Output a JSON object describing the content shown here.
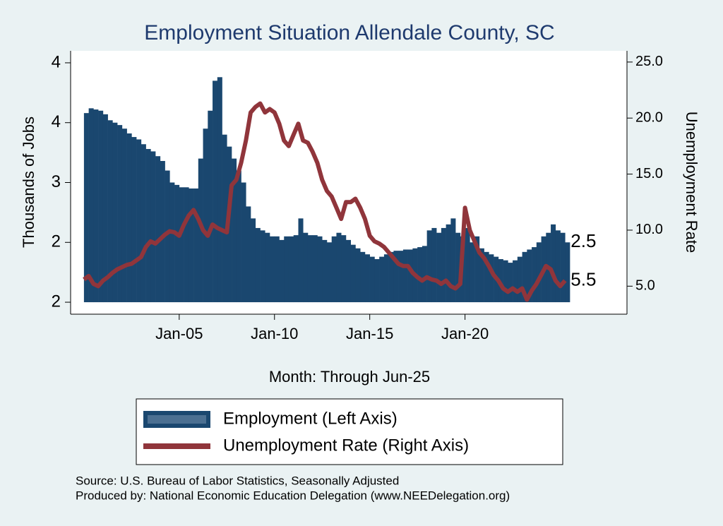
{
  "chart_data": {
    "type": "bar_line",
    "title": "Employment Situation Allendale  County, SC",
    "x_label": "Month: Through Jun-25",
    "y_label": "Thousands of Jobs",
    "y2_label": "Unemployment Rate",
    "x": [
      2000,
      2000.25,
      2000.5,
      2000.75,
      2001,
      2001.25,
      2001.5,
      2001.75,
      2002,
      2002.25,
      2002.5,
      2002.75,
      2003,
      2003.25,
      2003.5,
      2003.75,
      2004,
      2004.25,
      2004.5,
      2004.75,
      2005,
      2005.25,
      2005.5,
      2005.75,
      2006,
      2006.25,
      2006.5,
      2006.75,
      2007,
      2007.25,
      2007.5,
      2007.75,
      2008,
      2008.25,
      2008.5,
      2008.75,
      2009,
      2009.25,
      2009.5,
      2009.75,
      2010,
      2010.25,
      2010.5,
      2010.75,
      2011,
      2011.25,
      2011.5,
      2011.75,
      2012,
      2012.25,
      2012.5,
      2012.75,
      2013,
      2013.25,
      2013.5,
      2013.75,
      2014,
      2014.25,
      2014.5,
      2014.75,
      2015,
      2015.25,
      2015.5,
      2015.75,
      2016,
      2016.25,
      2016.5,
      2016.75,
      2017,
      2017.25,
      2017.5,
      2017.75,
      2018,
      2018.25,
      2018.5,
      2018.75,
      2019,
      2019.25,
      2019.5,
      2019.75,
      2020,
      2020.25,
      2020.5,
      2020.75,
      2021,
      2021.25,
      2021.5,
      2021.75,
      2022,
      2022.25,
      2022.5,
      2022.75,
      2023,
      2023.25,
      2023.5,
      2023.75,
      2024,
      2024.25,
      2024.5,
      2024.75,
      2025,
      2025.25
    ],
    "xlim": [
      1999.3,
      2028.5
    ],
    "xticks": [
      {
        "value": 2005,
        "label": "Jan-05"
      },
      {
        "value": 2010,
        "label": "Jan-10"
      },
      {
        "value": 2015,
        "label": "Jan-15"
      },
      {
        "value": 2020,
        "label": "Jan-20"
      }
    ],
    "ylim": [
      1.9,
      4.1
    ],
    "yticks": [
      {
        "value": 2.0,
        "label": "2"
      },
      {
        "value": 2.5,
        "label": "2"
      },
      {
        "value": 3.0,
        "label": "3"
      },
      {
        "value": 3.5,
        "label": "4"
      },
      {
        "value": 4.0,
        "label": "4"
      }
    ],
    "y2lim": [
      2.5,
      26
    ],
    "y2ticks": [
      {
        "value": 5,
        "label": "5.0"
      },
      {
        "value": 10,
        "label": "10.0"
      },
      {
        "value": 15,
        "label": "15.0"
      },
      {
        "value": 20,
        "label": "20.0"
      },
      {
        "value": 25,
        "label": "25.0"
      }
    ],
    "series": [
      {
        "name": "Employment (Left Axis)",
        "type": "bar",
        "color": "#1a476f",
        "end_label": "2.5",
        "values": [
          3.58,
          3.62,
          3.61,
          3.6,
          3.57,
          3.52,
          3.5,
          3.48,
          3.45,
          3.41,
          3.38,
          3.36,
          3.32,
          3.28,
          3.26,
          3.22,
          3.18,
          3.1,
          3.0,
          2.98,
          2.96,
          2.96,
          2.95,
          2.95,
          3.2,
          3.45,
          3.6,
          3.85,
          3.88,
          3.4,
          3.3,
          3.2,
          3.1,
          3.0,
          2.8,
          2.7,
          2.62,
          2.6,
          2.58,
          2.55,
          2.55,
          2.52,
          2.55,
          2.55,
          2.56,
          2.7,
          2.58,
          2.56,
          2.56,
          2.55,
          2.52,
          2.5,
          2.55,
          2.58,
          2.56,
          2.52,
          2.48,
          2.45,
          2.42,
          2.4,
          2.38,
          2.36,
          2.38,
          2.4,
          2.42,
          2.43,
          2.43,
          2.44,
          2.44,
          2.45,
          2.46,
          2.47,
          2.6,
          2.62,
          2.58,
          2.62,
          2.65,
          2.7,
          2.58,
          2.55,
          2.62,
          2.5,
          2.55,
          2.45,
          2.42,
          2.4,
          2.38,
          2.36,
          2.35,
          2.33,
          2.35,
          2.38,
          2.42,
          2.44,
          2.46,
          2.5,
          2.55,
          2.58,
          2.65,
          2.6,
          2.58,
          2.5
        ]
      },
      {
        "name": "Unemployment Rate (Right Axis)",
        "type": "line",
        "axis": "y2",
        "color": "#90353b",
        "end_label": "5.5",
        "values": [
          5.6,
          5.9,
          5.2,
          5.0,
          5.5,
          5.8,
          6.2,
          6.5,
          6.7,
          6.9,
          7.0,
          7.3,
          7.6,
          8.5,
          9.0,
          8.8,
          9.2,
          9.6,
          9.9,
          9.8,
          9.5,
          10.5,
          11.3,
          11.8,
          11.0,
          10.0,
          9.5,
          10.5,
          10.2,
          10.0,
          9.8,
          14.0,
          14.5,
          16.0,
          18.0,
          20.5,
          21.0,
          21.3,
          20.5,
          20.8,
          20.5,
          19.5,
          18.0,
          17.5,
          18.5,
          19.5,
          18.0,
          17.8,
          17.0,
          16.0,
          14.5,
          13.5,
          13.0,
          12.0,
          11.0,
          12.5,
          12.5,
          12.8,
          12.0,
          11.0,
          9.5,
          9.0,
          8.8,
          8.5,
          8.0,
          7.5,
          7.0,
          6.8,
          6.8,
          6.2,
          5.8,
          5.5,
          5.8,
          5.6,
          5.5,
          5.2,
          5.5,
          5.0,
          4.8,
          5.2,
          12.0,
          10.0,
          9.0,
          8.0,
          7.5,
          6.8,
          6.0,
          5.5,
          4.8,
          4.5,
          4.8,
          4.5,
          4.8,
          3.8,
          4.6,
          5.2,
          6.0,
          6.8,
          6.5,
          5.5,
          5.0,
          5.5
        ]
      }
    ],
    "notes": [
      "Source: U.S. Bureau of Labor Statistics, Seasonally Adjusted",
      "Produced by: National Economic Education Delegation (www.NEEDelegation.org)"
    ]
  }
}
